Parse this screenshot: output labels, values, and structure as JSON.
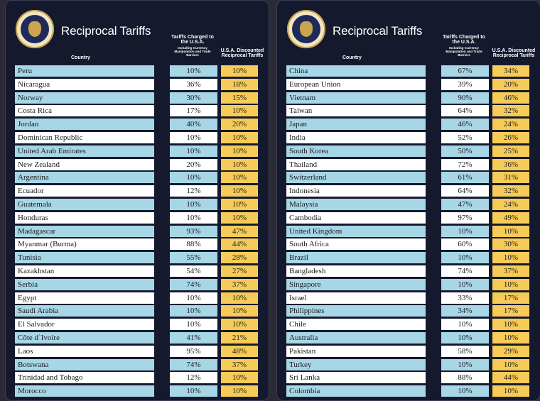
{
  "title": "Reciprocal Tariffs",
  "seal_text": "SEAL OF THE PRESIDENT OF THE UNITED STATES",
  "columns": {
    "country": "Country",
    "charged": "Tariffs Charged to the U.S.A.",
    "charged_sub": "Including Currency Manipulation and Trade Barriers",
    "discounted": "U.S.A. Discounted Reciprocal Tariffs"
  },
  "colors": {
    "panel": "#15192e",
    "row_blue": "#a7d6e6",
    "row_white": "#ffffff",
    "discount_yellow": "#f6cb57"
  },
  "left_rows": [
    {
      "country": "Peru",
      "charged": "10%",
      "discounted": "10%"
    },
    {
      "country": "Nicaragua",
      "charged": "36%",
      "discounted": "18%"
    },
    {
      "country": "Norway",
      "charged": "30%",
      "discounted": "15%"
    },
    {
      "country": "Costa Rica",
      "charged": "17%",
      "discounted": "10%"
    },
    {
      "country": "Jordan",
      "charged": "40%",
      "discounted": "20%"
    },
    {
      "country": "Dominican Republic",
      "charged": "10%",
      "discounted": "10%"
    },
    {
      "country": "United Arab Emirates",
      "charged": "10%",
      "discounted": "10%"
    },
    {
      "country": "New Zealand",
      "charged": "20%",
      "discounted": "10%"
    },
    {
      "country": "Argentina",
      "charged": "10%",
      "discounted": "10%"
    },
    {
      "country": "Ecuador",
      "charged": "12%",
      "discounted": "10%"
    },
    {
      "country": "Guatemala",
      "charged": "10%",
      "discounted": "10%"
    },
    {
      "country": "Honduras",
      "charged": "10%",
      "discounted": "10%"
    },
    {
      "country": "Madagascar",
      "charged": "93%",
      "discounted": "47%"
    },
    {
      "country": "Myanmar (Burma)",
      "charged": "88%",
      "discounted": "44%"
    },
    {
      "country": "Tunisia",
      "charged": "55%",
      "discounted": "28%"
    },
    {
      "country": "Kazakhstan",
      "charged": "54%",
      "discounted": "27%"
    },
    {
      "country": "Serbia",
      "charged": "74%",
      "discounted": "37%"
    },
    {
      "country": "Egypt",
      "charged": "10%",
      "discounted": "10%"
    },
    {
      "country": "Saudi Arabia",
      "charged": "10%",
      "discounted": "10%"
    },
    {
      "country": "El Salvador",
      "charged": "10%",
      "discounted": "10%"
    },
    {
      "country": "Côte d`Ivoire",
      "charged": "41%",
      "discounted": "21%"
    },
    {
      "country": "Laos",
      "charged": "95%",
      "discounted": "48%"
    },
    {
      "country": "Botswana",
      "charged": "74%",
      "discounted": "37%"
    },
    {
      "country": "Trinidad and Tobago",
      "charged": "12%",
      "discounted": "10%"
    },
    {
      "country": "Morocco",
      "charged": "10%",
      "discounted": "10%"
    }
  ],
  "right_rows": [
    {
      "country": "China",
      "charged": "67%",
      "discounted": "34%"
    },
    {
      "country": "European Union",
      "charged": "39%",
      "discounted": "20%"
    },
    {
      "country": "Vietnam",
      "charged": "90%",
      "discounted": "46%"
    },
    {
      "country": "Taiwan",
      "charged": "64%",
      "discounted": "32%"
    },
    {
      "country": "Japan",
      "charged": "46%",
      "discounted": "24%"
    },
    {
      "country": "India",
      "charged": "52%",
      "discounted": "26%"
    },
    {
      "country": "South Korea",
      "charged": "50%",
      "discounted": "25%"
    },
    {
      "country": "Thailand",
      "charged": "72%",
      "discounted": "36%"
    },
    {
      "country": "Switzerland",
      "charged": "61%",
      "discounted": "31%"
    },
    {
      "country": "Indonesia",
      "charged": "64%",
      "discounted": "32%"
    },
    {
      "country": "Malaysia",
      "charged": "47%",
      "discounted": "24%"
    },
    {
      "country": "Cambodia",
      "charged": "97%",
      "discounted": "49%"
    },
    {
      "country": "United Kingdom",
      "charged": "10%",
      "discounted": "10%"
    },
    {
      "country": "South Africa",
      "charged": "60%",
      "discounted": "30%"
    },
    {
      "country": "Brazil",
      "charged": "10%",
      "discounted": "10%"
    },
    {
      "country": "Bangladesh",
      "charged": "74%",
      "discounted": "37%"
    },
    {
      "country": "Singapore",
      "charged": "10%",
      "discounted": "10%"
    },
    {
      "country": "Israel",
      "charged": "33%",
      "discounted": "17%"
    },
    {
      "country": "Philippines",
      "charged": "34%",
      "discounted": "17%"
    },
    {
      "country": "Chile",
      "charged": "10%",
      "discounted": "10%"
    },
    {
      "country": "Australia",
      "charged": "10%",
      "discounted": "10%"
    },
    {
      "country": "Pakistan",
      "charged": "58%",
      "discounted": "29%"
    },
    {
      "country": "Turkey",
      "charged": "10%",
      "discounted": "10%"
    },
    {
      "country": "Sri Lanka",
      "charged": "88%",
      "discounted": "44%"
    },
    {
      "country": "Colombia",
      "charged": "10%",
      "discounted": "10%"
    }
  ]
}
